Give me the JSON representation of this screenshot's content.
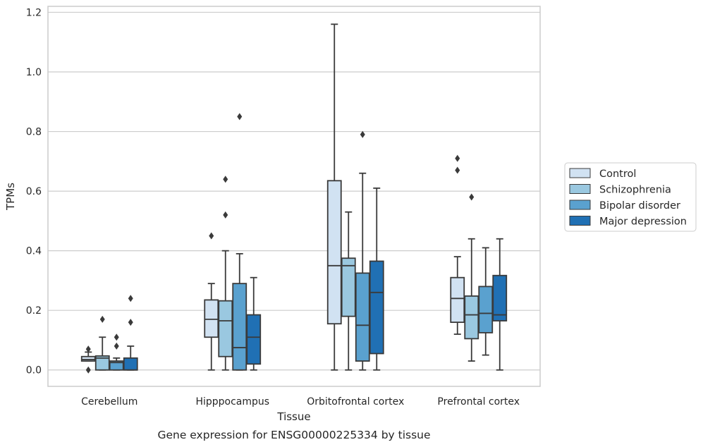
{
  "chart_data": {
    "type": "box",
    "title": "",
    "caption": "Gene expression for ENSG00000225334 by tissue",
    "xlabel": "Tissue",
    "ylabel": "TPMs",
    "ylim": [
      -0.055,
      1.22
    ],
    "yticks": [
      "0.0",
      "0.2",
      "0.4",
      "0.6",
      "0.8",
      "1.0",
      "1.2"
    ],
    "grid": "horizontal",
    "legend_position": "right",
    "categories": [
      "Cerebellum",
      "Hipppocampus",
      "Orbitofrontal cortex",
      "Prefrontal cortex"
    ],
    "series": [
      {
        "name": "Control",
        "color": "#d1e2f2",
        "boxes": [
          {
            "whisker_low": 0.03,
            "q1": 0.03,
            "median": 0.035,
            "q3": 0.045,
            "whisker_high": 0.06,
            "outliers": [
              0.07,
              0.0
            ]
          },
          {
            "whisker_low": 0.0,
            "q1": 0.11,
            "median": 0.17,
            "q3": 0.235,
            "whisker_high": 0.29,
            "outliers": [
              0.45
            ]
          },
          {
            "whisker_low": 0.0,
            "q1": 0.155,
            "median": 0.35,
            "q3": 0.635,
            "whisker_high": 1.16,
            "outliers": []
          },
          {
            "whisker_low": 0.12,
            "q1": 0.16,
            "median": 0.24,
            "q3": 0.31,
            "whisker_high": 0.38,
            "outliers": [
              0.71,
              0.67
            ]
          }
        ]
      },
      {
        "name": "Schizophrenia",
        "color": "#9ac8e0",
        "boxes": [
          {
            "whisker_low": 0.0,
            "q1": 0.0,
            "median": 0.04,
            "q3": 0.047,
            "whisker_high": 0.11,
            "outliers": [
              0.17
            ]
          },
          {
            "whisker_low": 0.0,
            "q1": 0.045,
            "median": 0.165,
            "q3": 0.232,
            "whisker_high": 0.4,
            "outliers": [
              0.64,
              0.52
            ]
          },
          {
            "whisker_low": 0.0,
            "q1": 0.18,
            "median": 0.35,
            "q3": 0.375,
            "whisker_high": 0.53,
            "outliers": []
          },
          {
            "whisker_low": 0.03,
            "q1": 0.105,
            "median": 0.185,
            "q3": 0.248,
            "whisker_high": 0.44,
            "outliers": [
              0.58
            ]
          }
        ]
      },
      {
        "name": "Bipolar disorder",
        "color": "#5aa1cf",
        "boxes": [
          {
            "whisker_low": 0.0,
            "q1": 0.0,
            "median": 0.025,
            "q3": 0.03,
            "whisker_high": 0.04,
            "outliers": [
              0.11,
              0.08
            ]
          },
          {
            "whisker_low": 0.0,
            "q1": 0.0,
            "median": 0.075,
            "q3": 0.29,
            "whisker_high": 0.39,
            "outliers": [
              0.85
            ]
          },
          {
            "whisker_low": 0.0,
            "q1": 0.03,
            "median": 0.15,
            "q3": 0.325,
            "whisker_high": 0.66,
            "outliers": [
              0.79
            ]
          },
          {
            "whisker_low": 0.05,
            "q1": 0.125,
            "median": 0.19,
            "q3": 0.28,
            "whisker_high": 0.41,
            "outliers": []
          }
        ]
      },
      {
        "name": "Major depression",
        "color": "#2070b4",
        "boxes": [
          {
            "whisker_low": 0.0,
            "q1": 0.0,
            "median": 0.0,
            "q3": 0.04,
            "whisker_high": 0.08,
            "outliers": [
              0.24,
              0.16
            ]
          },
          {
            "whisker_low": 0.0,
            "q1": 0.02,
            "median": 0.11,
            "q3": 0.185,
            "whisker_high": 0.31,
            "outliers": []
          },
          {
            "whisker_low": 0.0,
            "q1": 0.055,
            "median": 0.26,
            "q3": 0.365,
            "whisker_high": 0.61,
            "outliers": []
          },
          {
            "whisker_low": 0.0,
            "q1": 0.165,
            "median": 0.185,
            "q3": 0.317,
            "whisker_high": 0.44,
            "outliers": []
          }
        ]
      }
    ]
  }
}
